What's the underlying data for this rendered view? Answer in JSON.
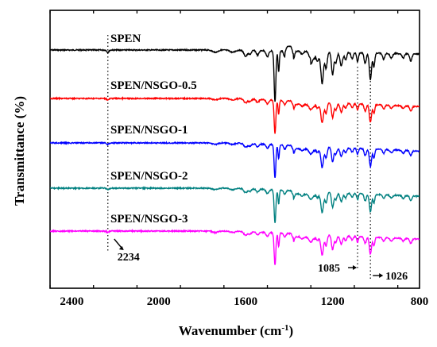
{
  "chart_data": {
    "type": "line",
    "title": "",
    "xlabel": "Wavenumber (cm",
    "xlabel_sup": "-1",
    "xlabel_tail": ")",
    "ylabel": "Transmittance (%)",
    "xlim": [
      2500,
      800
    ],
    "x_reversed": true,
    "xticks": [
      2400,
      2000,
      1600,
      1200,
      800
    ],
    "xtick_labels": [
      "2400",
      "2000",
      "1600",
      "1200",
      "800"
    ],
    "y_ticks_shown": false,
    "grid": false,
    "legend": "inline-labels",
    "series": [
      {
        "name": "SPEN",
        "color": "#000000"
      },
      {
        "name": "SPEN/NSGO-0.5",
        "color": "#ff0000"
      },
      {
        "name": "SPEN/NSGO-1",
        "color": "#0000ff"
      },
      {
        "name": "SPEN/NSGO-2",
        "color": "#008080"
      },
      {
        "name": "SPEN/NSGO-3",
        "color": "#ff00ff"
      }
    ],
    "reference_lines": [
      {
        "x": 2234,
        "label": "2234",
        "style": "dotted"
      },
      {
        "x": 1085,
        "label": "1085",
        "style": "dotted"
      },
      {
        "x": 1026,
        "label": "1026",
        "style": "dotted"
      }
    ]
  }
}
